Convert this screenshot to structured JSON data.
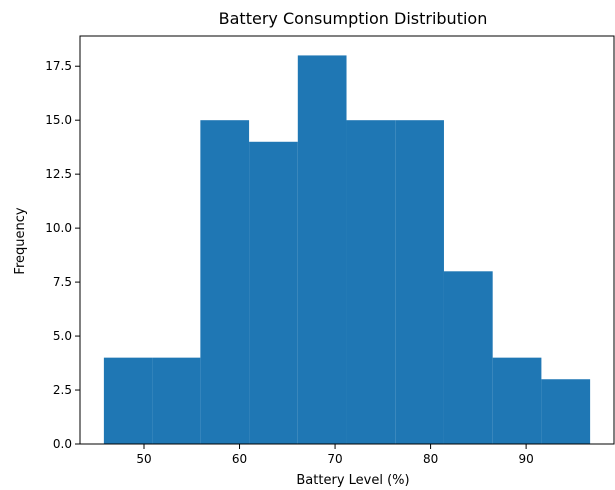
{
  "chart_data": {
    "type": "bar",
    "title": "Battery Consumption Distribution",
    "xlabel": "Battery Level (%)",
    "ylabel": "Frequency",
    "bins": [
      {
        "x0": 45.8,
        "x1": 50.9,
        "count": 4
      },
      {
        "x0": 50.9,
        "x1": 55.9,
        "count": 4
      },
      {
        "x0": 55.9,
        "x1": 61.0,
        "count": 15
      },
      {
        "x0": 61.0,
        "x1": 66.1,
        "count": 14
      },
      {
        "x0": 66.1,
        "x1": 71.2,
        "count": 18
      },
      {
        "x0": 71.2,
        "x1": 76.3,
        "count": 15
      },
      {
        "x0": 76.3,
        "x1": 81.4,
        "count": 15
      },
      {
        "x0": 81.4,
        "x1": 86.5,
        "count": 8
      },
      {
        "x0": 86.5,
        "x1": 91.6,
        "count": 4
      },
      {
        "x0": 91.6,
        "x1": 96.7,
        "count": 3
      }
    ],
    "xlim": [
      43.3,
      99.2
    ],
    "ylim": [
      0,
      18.9
    ],
    "x_ticks": [
      50,
      60,
      70,
      80,
      90
    ],
    "y_ticks": [
      0.0,
      2.5,
      5.0,
      7.5,
      10.0,
      12.5,
      15.0,
      17.5
    ],
    "x_tick_labels": [
      "50",
      "60",
      "70",
      "80",
      "90"
    ],
    "y_tick_labels": [
      "0.0",
      "2.5",
      "5.0",
      "7.5",
      "10.0",
      "12.5",
      "15.0",
      "17.5"
    ],
    "bar_color": "#1f77b4",
    "grid": false
  }
}
